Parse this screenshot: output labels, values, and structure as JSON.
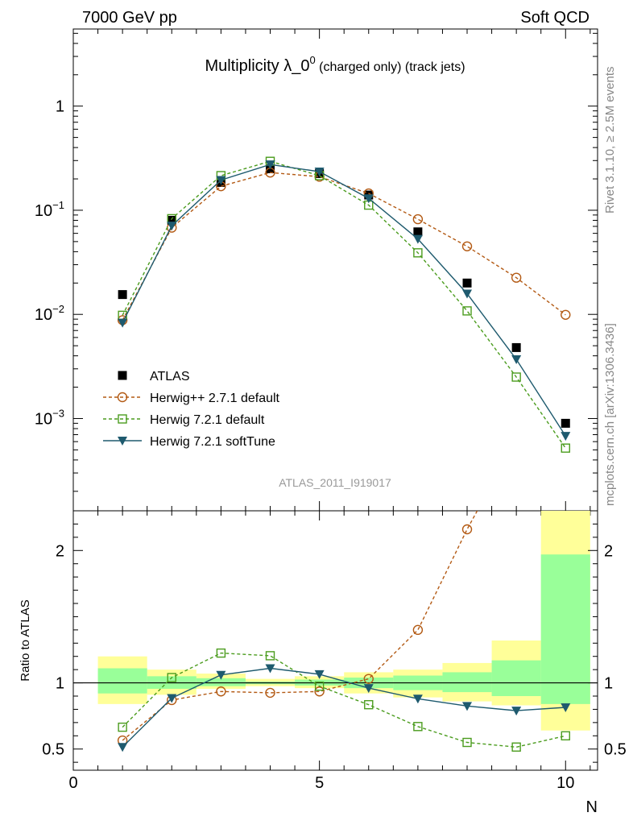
{
  "header": {
    "left": "7000 GeV pp",
    "right": "Soft QCD"
  },
  "side_labels": {
    "rivet": "Rivet 3.1.10, ≥ 2.5M events",
    "mcplots": "mcplots.cern.ch [arXiv:1306.3436]"
  },
  "watermark": "ATLAS_2011_I919017",
  "chart_data": [
    {
      "type": "scatter",
      "title_main": "Multiplicity λ_0",
      "title_sup": "0",
      "title_small": " (charged only) (track jets)",
      "xlabel": "N",
      "ylabel": "",
      "yscale": "log",
      "xlim": [
        0,
        10.65
      ],
      "ylim": [
        0.00013,
        5.5
      ],
      "y_ticks": [
        {
          "value": 1,
          "base": "1",
          "exp": ""
        },
        {
          "value": 0.1,
          "base": "10",
          "exp": "−1"
        },
        {
          "value": 0.01,
          "base": "10",
          "exp": "−2"
        },
        {
          "value": 0.001,
          "base": "10",
          "exp": "−3"
        }
      ],
      "legend_position": "lower-left",
      "series": [
        {
          "name": "ATLAS",
          "color": "#000000",
          "marker": "filled-square",
          "line": "none",
          "x": [
            1,
            2,
            3,
            4,
            5,
            6,
            7,
            8,
            9,
            10
          ],
          "y": [
            0.0155,
            0.08,
            0.185,
            0.25,
            0.225,
            0.14,
            0.062,
            0.02,
            0.0048,
            0.0009
          ]
        },
        {
          "name": "Herwig++ 2.7.1 default",
          "color": "#b35a14",
          "marker": "open-circle",
          "line": "dashed",
          "x": [
            1,
            2,
            3,
            4,
            5,
            6,
            7,
            8,
            9,
            10
          ],
          "y": [
            0.0088,
            0.068,
            0.17,
            0.23,
            0.21,
            0.145,
            0.082,
            0.045,
            0.0225,
            0.0099
          ]
        },
        {
          "name": "Herwig 7.2.1 default",
          "color": "#4b9c1e",
          "marker": "open-square",
          "line": "dashed",
          "x": [
            1,
            2,
            3,
            4,
            5,
            6,
            7,
            8,
            9,
            10
          ],
          "y": [
            0.0098,
            0.083,
            0.215,
            0.295,
            0.215,
            0.112,
            0.039,
            0.0108,
            0.0025,
            0.00052
          ]
        },
        {
          "name": "Herwig 7.2.1 softTune",
          "color": "#1e5a6e",
          "marker": "filled-triangle-down",
          "line": "solid",
          "x": [
            1,
            2,
            3,
            4,
            5,
            6,
            7,
            8,
            9,
            10
          ],
          "y": [
            0.0083,
            0.071,
            0.195,
            0.275,
            0.235,
            0.13,
            0.053,
            0.0158,
            0.0037,
            0.00068
          ]
        }
      ]
    },
    {
      "type": "line",
      "xlabel": "N",
      "ylabel": "Ratio to ATLAS",
      "xlim": [
        0,
        10.65
      ],
      "ylim": [
        0.34,
        2.3
      ],
      "x_ticks": [
        0,
        5,
        10
      ],
      "y_ticks": [
        0.5,
        1,
        2
      ],
      "reference": 1,
      "bands": {
        "x_edges": [
          0.5,
          1.5,
          2.5,
          3.5,
          4.5,
          5.5,
          6.5,
          7.5,
          8.5,
          9.5,
          10.5
        ],
        "yellow": [
          [
            0.84,
            1.2
          ],
          [
            0.91,
            1.1
          ],
          [
            0.955,
            1.07
          ],
          [
            0.975,
            1.03
          ],
          [
            0.96,
            1.05
          ],
          [
            0.92,
            1.08
          ],
          [
            0.89,
            1.1
          ],
          [
            0.86,
            1.15
          ],
          [
            0.83,
            1.32
          ],
          [
            0.64,
            2.3
          ]
        ],
        "green": [
          [
            0.92,
            1.11
          ],
          [
            0.955,
            1.05
          ],
          [
            0.975,
            1.035
          ],
          [
            0.99,
            1.01
          ],
          [
            0.98,
            1.025
          ],
          [
            0.96,
            1.04
          ],
          [
            0.945,
            1.055
          ],
          [
            0.93,
            1.08
          ],
          [
            0.9,
            1.17
          ],
          [
            0.84,
            1.97
          ]
        ]
      },
      "series": [
        {
          "name": "Herwig++ 2.7.1 default",
          "color": "#b35a14",
          "marker": "open-circle",
          "line": "dashed",
          "x": [
            1,
            2,
            3,
            4,
            5,
            6,
            7,
            8,
            8.25
          ],
          "y": [
            0.565,
            0.87,
            0.935,
            0.925,
            0.935,
            1.03,
            1.4,
            2.16,
            2.33
          ]
        },
        {
          "name": "Herwig 7.2.1 default",
          "color": "#4b9c1e",
          "marker": "open-square",
          "line": "dashed",
          "x": [
            1,
            2,
            3,
            4,
            5,
            6,
            7,
            8,
            9,
            10
          ],
          "y": [
            0.665,
            1.04,
            1.225,
            1.205,
            0.975,
            0.835,
            0.67,
            0.55,
            0.515,
            0.6
          ]
        },
        {
          "name": "Herwig 7.2.1 softTune",
          "color": "#1e5a6e",
          "marker": "filled-triangle-down",
          "line": "solid",
          "x": [
            1,
            2,
            3,
            4,
            5,
            6,
            7,
            8,
            9,
            10
          ],
          "y": [
            0.515,
            0.885,
            1.06,
            1.11,
            1.065,
            0.96,
            0.88,
            0.825,
            0.79,
            0.815
          ]
        }
      ]
    }
  ]
}
